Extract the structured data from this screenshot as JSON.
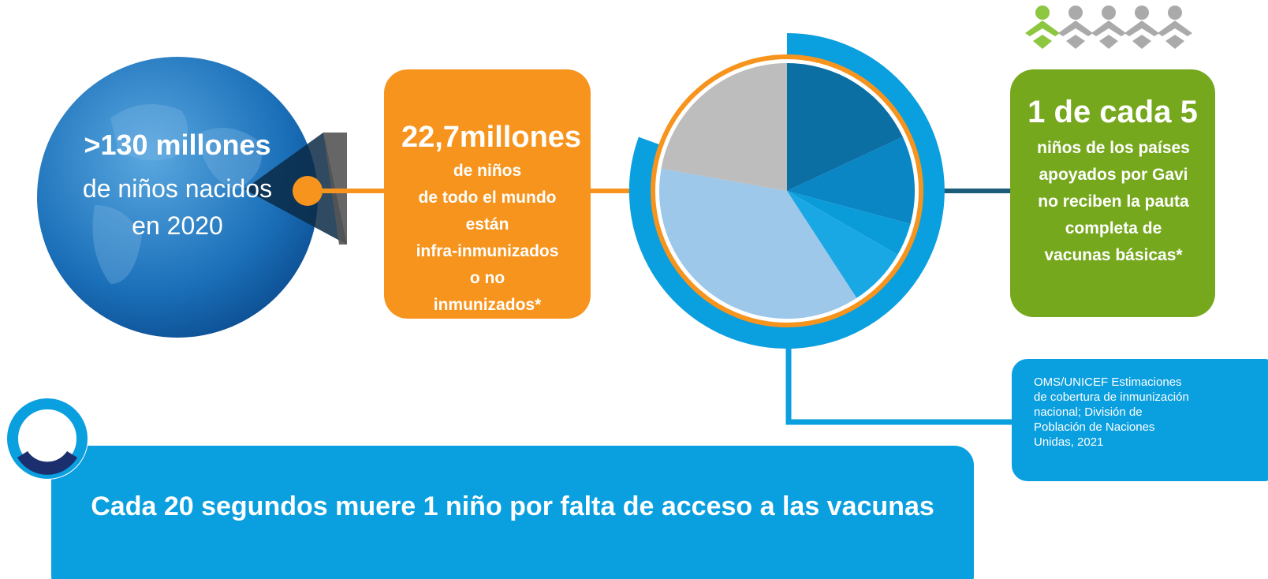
{
  "globe": {
    "headline": ">130 millones",
    "lines": [
      "de niños nacidos",
      "en 2020"
    ]
  },
  "orange_box": {
    "headline": "22,7millones",
    "lines": [
      "de niños",
      "de todo el mundo",
      "están",
      "infra-inmunizados",
      "o no",
      "inmunizados*"
    ]
  },
  "green_box": {
    "headline": "1 de cada 5",
    "lines": [
      "niños de los países",
      "apoyados por Gavi",
      "no reciben la pauta",
      "completa de",
      "vacunas básicas*"
    ]
  },
  "source": {
    "lines": [
      "OMS/UNICEF Estimaciones",
      "de cobertura de inmunización",
      "nacional; División de",
      "Población de Naciones",
      "Unidas, 2021"
    ]
  },
  "banner": {
    "text": "Cada 20 segundos muere 1 niño por falta de acceso a las vacunas"
  }
}
